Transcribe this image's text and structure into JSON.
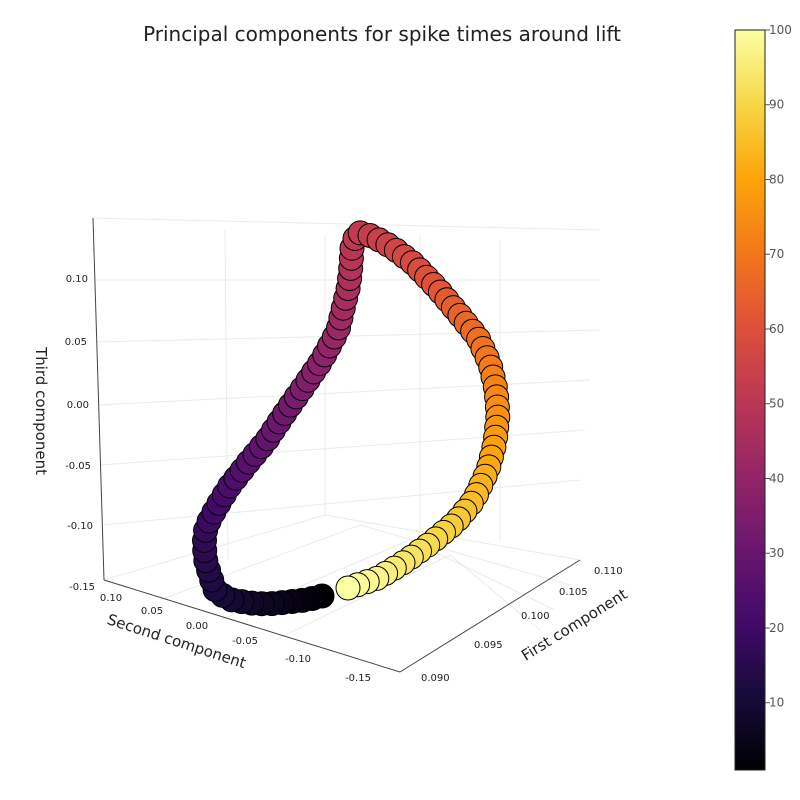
{
  "chart_data": {
    "type": "scatter3d",
    "title": "Principal components for spike times around lift",
    "xlabel": "First component",
    "ylabel": "Second component",
    "zlabel": "Third component",
    "x_ticks": [
      "0.090",
      "0.095",
      "0.100",
      "0.105",
      "0.110"
    ],
    "y_ticks": [
      "0.10",
      "0.05",
      "0.00",
      "-0.05",
      "-0.10",
      "-0.15"
    ],
    "z_ticks": [
      "0.10",
      "0.05",
      "0.00",
      "-0.05",
      "-0.10",
      "-0.15"
    ],
    "colorbar": {
      "colormap": "inferno",
      "range": [
        1,
        100
      ],
      "ticks": [
        "10",
        "20",
        "30",
        "40",
        "50",
        "60",
        "70",
        "80",
        "90",
        "100"
      ]
    },
    "grid": true,
    "series": [
      {
        "color_variable_range": [
          1,
          100
        ],
        "path_points_approx": [
          [
            322,
            596
          ],
          [
            306,
            600
          ],
          [
            288,
            602
          ],
          [
            268,
            604
          ],
          [
            250,
            603
          ],
          [
            232,
            600
          ],
          [
            216,
            592
          ],
          [
            211,
            578
          ],
          [
            206,
            562
          ],
          [
            204,
            545
          ],
          [
            206,
            527
          ],
          [
            215,
            510
          ],
          [
            229,
            487
          ],
          [
            247,
            464
          ],
          [
            267,
            440
          ],
          [
            287,
            410
          ],
          [
            304,
            386
          ],
          [
            322,
            360
          ],
          [
            338,
            330
          ],
          [
            344,
            305
          ],
          [
            349,
            285
          ],
          [
            351,
            265
          ],
          [
            352,
            248
          ],
          [
            357,
            232
          ],
          [
            372,
            236
          ],
          [
            392,
            247
          ],
          [
            414,
            264
          ],
          [
            437,
            288
          ],
          [
            458,
            313
          ],
          [
            478,
            338
          ],
          [
            490,
            364
          ],
          [
            496,
            390
          ],
          [
            498,
            415
          ],
          [
            495,
            443
          ],
          [
            488,
            470
          ],
          [
            474,
            500
          ],
          [
            456,
            522
          ],
          [
            432,
            542
          ],
          [
            406,
            561
          ],
          [
            378,
            578
          ],
          [
            348,
            588
          ]
        ]
      }
    ]
  }
}
